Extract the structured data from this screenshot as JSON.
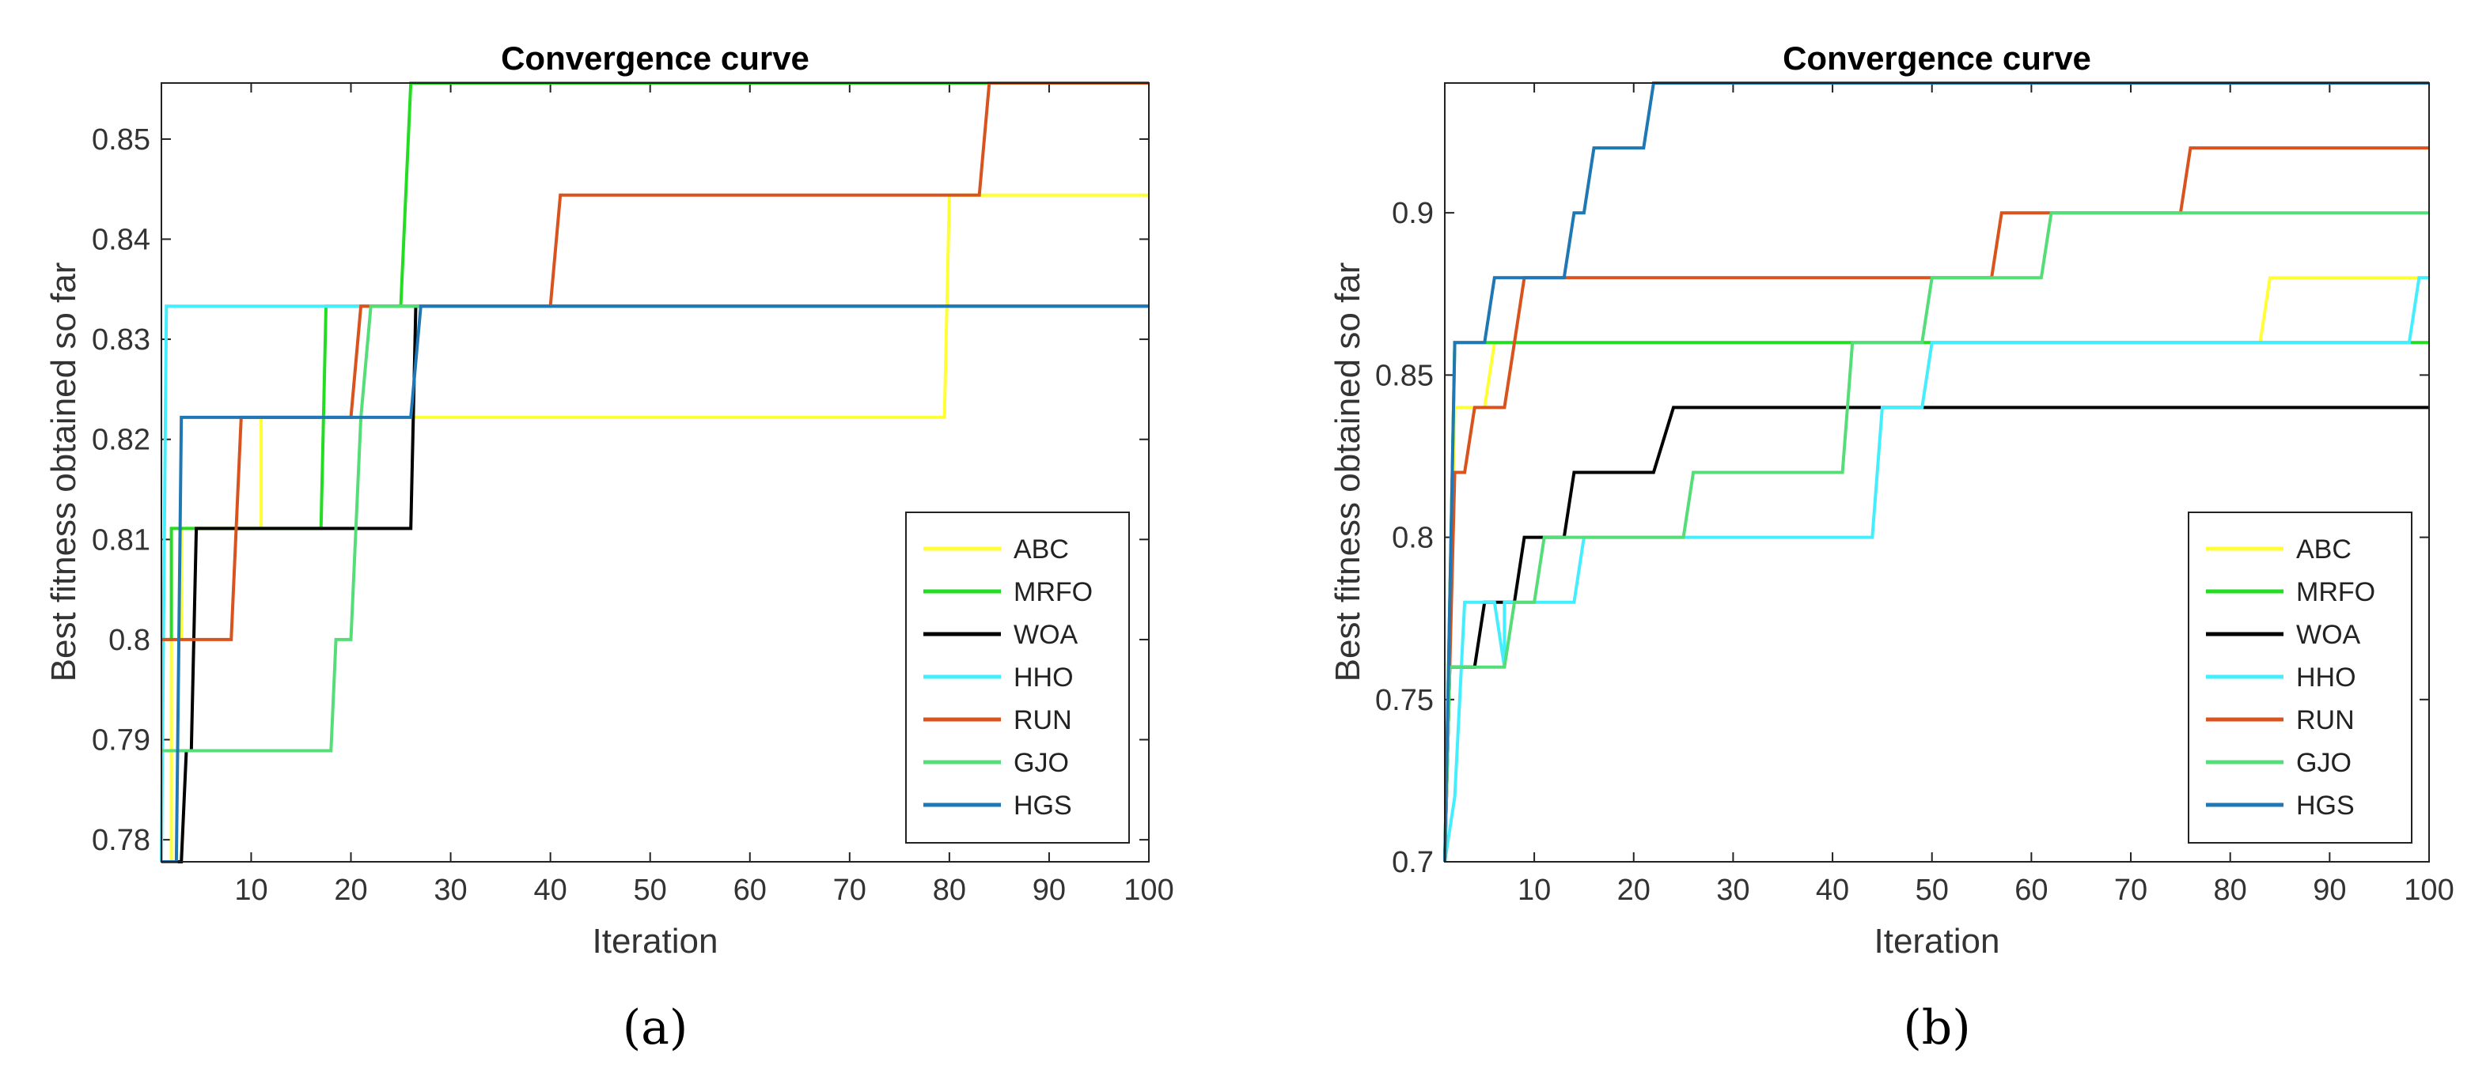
{
  "chart_data": [
    {
      "id": "a",
      "type": "line",
      "title": "Convergence curve",
      "xlabel": "Iteration",
      "ylabel": "Best fitness obtained so far",
      "xlim": [
        1,
        100
      ],
      "ylim": [
        0.7778,
        0.8556
      ],
      "xticks": [
        10,
        20,
        30,
        40,
        50,
        60,
        70,
        80,
        90,
        100
      ],
      "yticks": [
        0.78,
        0.79,
        0.8,
        0.81,
        0.82,
        0.83,
        0.84,
        0.85
      ],
      "ytick_labels": [
        "0.78",
        "0.79",
        "0.8",
        "0.81",
        "0.82",
        "0.83",
        "0.84",
        "0.85"
      ],
      "caption": "(a)",
      "legend_position": "lower-right",
      "series": [
        {
          "name": "ABC",
          "color": "#ffff33",
          "points": [
            [
              1,
              0.7778
            ],
            [
              2,
              0.7778
            ],
            [
              2,
              0.8
            ],
            [
              3,
              0.8
            ],
            [
              3,
              0.8111
            ],
            [
              11,
              0.8111
            ],
            [
              11,
              0.8222
            ],
            [
              79.5,
              0.8222
            ],
            [
              80,
              0.8444
            ],
            [
              100,
              0.8444
            ]
          ]
        },
        {
          "name": "MRFO",
          "color": "#22dd22",
          "points": [
            [
              1,
              0.8
            ],
            [
              2,
              0.8
            ],
            [
              2,
              0.8111
            ],
            [
              17,
              0.8111
            ],
            [
              17.5,
              0.8333
            ],
            [
              25,
              0.8333
            ],
            [
              26,
              0.8556
            ],
            [
              100,
              0.8556
            ]
          ]
        },
        {
          "name": "WOA",
          "color": "#000000",
          "points": [
            [
              1,
              0.7778
            ],
            [
              3,
              0.7778
            ],
            [
              3.5,
              0.7889
            ],
            [
              4,
              0.7889
            ],
            [
              4.5,
              0.8111
            ],
            [
              26,
              0.8111
            ],
            [
              26.5,
              0.8333
            ],
            [
              100,
              0.8333
            ]
          ]
        },
        {
          "name": "HHO",
          "color": "#44eeff",
          "points": [
            [
              1,
              0.7778
            ],
            [
              1.5,
              0.8333
            ],
            [
              100,
              0.8333
            ]
          ]
        },
        {
          "name": "RUN",
          "color": "#d9531e",
          "points": [
            [
              1,
              0.8
            ],
            [
              8,
              0.8
            ],
            [
              9,
              0.8222
            ],
            [
              20,
              0.8222
            ],
            [
              21,
              0.8333
            ],
            [
              40,
              0.8333
            ],
            [
              41,
              0.8444
            ],
            [
              83,
              0.8444
            ],
            [
              84,
              0.8556
            ],
            [
              100,
              0.8556
            ]
          ]
        },
        {
          "name": "GJO",
          "color": "#55dd77",
          "points": [
            [
              1,
              0.7889
            ],
            [
              18,
              0.7889
            ],
            [
              18.5,
              0.8
            ],
            [
              20,
              0.8
            ],
            [
              21,
              0.8222
            ],
            [
              22,
              0.8333
            ],
            [
              100,
              0.8333
            ]
          ]
        },
        {
          "name": "HGS",
          "color": "#1f77b4",
          "points": [
            [
              1,
              0.7778
            ],
            [
              2.5,
              0.7778
            ],
            [
              3,
              0.8222
            ],
            [
              26,
              0.8222
            ],
            [
              27,
              0.8333
            ],
            [
              100,
              0.8333
            ]
          ]
        }
      ]
    },
    {
      "id": "b",
      "type": "line",
      "title": "Convergence curve",
      "xlabel": "Iteration",
      "ylabel": "Best fitness obtained so far",
      "xlim": [
        1,
        100
      ],
      "ylim": [
        0.7,
        0.94
      ],
      "xticks": [
        10,
        20,
        30,
        40,
        50,
        60,
        70,
        80,
        90,
        100
      ],
      "yticks": [
        0.7,
        0.75,
        0.8,
        0.85,
        0.9
      ],
      "ytick_labels": [
        "0.7",
        "0.75",
        "0.8",
        "0.85",
        "0.9"
      ],
      "caption": "(b)",
      "legend_position": "lower-right",
      "series": [
        {
          "name": "ABC",
          "color": "#ffff33",
          "points": [
            [
              1,
              0.7
            ],
            [
              2,
              0.84
            ],
            [
              5,
              0.84
            ],
            [
              6,
              0.86
            ],
            [
              83,
              0.86
            ],
            [
              84,
              0.88
            ],
            [
              100,
              0.88
            ]
          ]
        },
        {
          "name": "MRFO",
          "color": "#22dd22",
          "points": [
            [
              1,
              0.7
            ],
            [
              2,
              0.86
            ],
            [
              100,
              0.86
            ]
          ]
        },
        {
          "name": "WOA",
          "color": "#000000",
          "points": [
            [
              1,
              0.7
            ],
            [
              1.5,
              0.76
            ],
            [
              4,
              0.76
            ],
            [
              5,
              0.78
            ],
            [
              8,
              0.78
            ],
            [
              9,
              0.8
            ],
            [
              13,
              0.8
            ],
            [
              14,
              0.82
            ],
            [
              22,
              0.82
            ],
            [
              24,
              0.84
            ],
            [
              100,
              0.84
            ]
          ]
        },
        {
          "name": "HHO",
          "color": "#44eeff",
          "points": [
            [
              1,
              0.7
            ],
            [
              2,
              0.72
            ],
            [
              3,
              0.78
            ],
            [
              6,
              0.78
            ],
            [
              7,
              0.76
            ],
            [
              7,
              0.78
            ],
            [
              14,
              0.78
            ],
            [
              15,
              0.8
            ],
            [
              44,
              0.8
            ],
            [
              45,
              0.84
            ],
            [
              49,
              0.84
            ],
            [
              50,
              0.86
            ],
            [
              98,
              0.86
            ],
            [
              99,
              0.88
            ],
            [
              100,
              0.88
            ]
          ]
        },
        {
          "name": "RUN",
          "color": "#d9531e",
          "points": [
            [
              1,
              0.7
            ],
            [
              2,
              0.82
            ],
            [
              3,
              0.82
            ],
            [
              4,
              0.84
            ],
            [
              7,
              0.84
            ],
            [
              8,
              0.86
            ],
            [
              9,
              0.88
            ],
            [
              56,
              0.88
            ],
            [
              57,
              0.9
            ],
            [
              75,
              0.9
            ],
            [
              76,
              0.92
            ],
            [
              100,
              0.92
            ]
          ]
        },
        {
          "name": "GJO",
          "color": "#55dd77",
          "points": [
            [
              1,
              0.7
            ],
            [
              1.5,
              0.76
            ],
            [
              6,
              0.76
            ],
            [
              7,
              0.76
            ],
            [
              8,
              0.78
            ],
            [
              10,
              0.78
            ],
            [
              11,
              0.8
            ],
            [
              25,
              0.8
            ],
            [
              26,
              0.82
            ],
            [
              41,
              0.82
            ],
            [
              42,
              0.86
            ],
            [
              49,
              0.86
            ],
            [
              50,
              0.88
            ],
            [
              61,
              0.88
            ],
            [
              62,
              0.9
            ],
            [
              100,
              0.9
            ]
          ]
        },
        {
          "name": "HGS",
          "color": "#1f77b4",
          "points": [
            [
              1,
              0.7
            ],
            [
              2,
              0.86
            ],
            [
              5,
              0.86
            ],
            [
              6,
              0.88
            ],
            [
              13,
              0.88
            ],
            [
              14,
              0.9
            ],
            [
              15,
              0.9
            ],
            [
              16,
              0.92
            ],
            [
              21,
              0.92
            ],
            [
              22,
              0.94
            ],
            [
              100,
              0.94
            ]
          ]
        }
      ]
    }
  ]
}
